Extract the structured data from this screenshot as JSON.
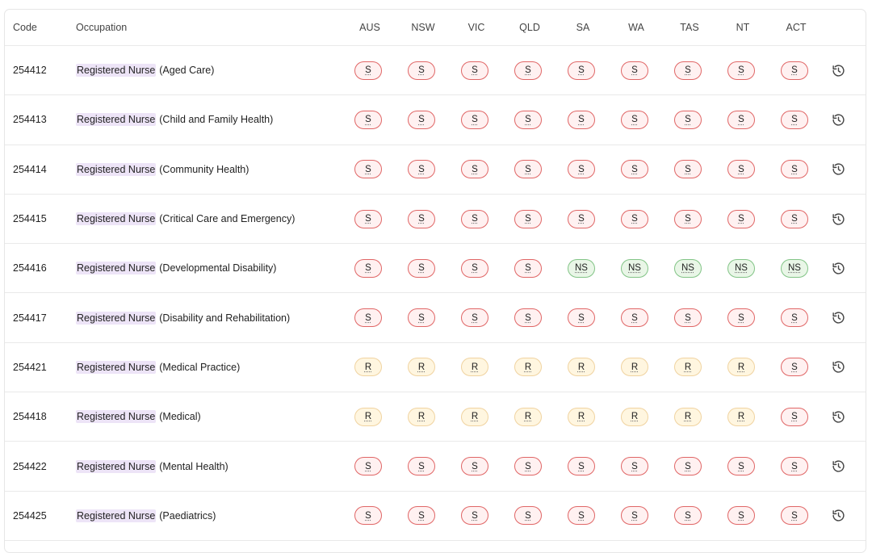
{
  "table": {
    "headers": {
      "code": "Code",
      "occupation": "Occupation",
      "states": [
        "AUS",
        "NSW",
        "VIC",
        "QLD",
        "SA",
        "WA",
        "TAS",
        "NT",
        "ACT"
      ]
    },
    "rows": [
      {
        "code": "254412",
        "name": "Registered Nurse",
        "spec": "(Aged Care)",
        "statuses": [
          "S",
          "S",
          "S",
          "S",
          "S",
          "S",
          "S",
          "S",
          "S"
        ]
      },
      {
        "code": "254413",
        "name": "Registered Nurse",
        "spec": "(Child and Family Health)",
        "statuses": [
          "S",
          "S",
          "S",
          "S",
          "S",
          "S",
          "S",
          "S",
          "S"
        ]
      },
      {
        "code": "254414",
        "name": "Registered Nurse",
        "spec": "(Community Health)",
        "statuses": [
          "S",
          "S",
          "S",
          "S",
          "S",
          "S",
          "S",
          "S",
          "S"
        ]
      },
      {
        "code": "254415",
        "name": "Registered Nurse",
        "spec": "(Critical Care and Emergency)",
        "statuses": [
          "S",
          "S",
          "S",
          "S",
          "S",
          "S",
          "S",
          "S",
          "S"
        ]
      },
      {
        "code": "254416",
        "name": "Registered Nurse",
        "spec": "(Developmental Disability)",
        "statuses": [
          "S",
          "S",
          "S",
          "S",
          "NS",
          "NS",
          "NS",
          "NS",
          "NS"
        ]
      },
      {
        "code": "254417",
        "name": "Registered Nurse",
        "spec": "(Disability and Rehabilitation)",
        "statuses": [
          "S",
          "S",
          "S",
          "S",
          "S",
          "S",
          "S",
          "S",
          "S"
        ]
      },
      {
        "code": "254421",
        "name": "Registered Nurse",
        "spec": "(Medical Practice)",
        "statuses": [
          "R",
          "R",
          "R",
          "R",
          "R",
          "R",
          "R",
          "R",
          "S"
        ]
      },
      {
        "code": "254418",
        "name": "Registered Nurse",
        "spec": "(Medical)",
        "statuses": [
          "R",
          "R",
          "R",
          "R",
          "R",
          "R",
          "R",
          "R",
          "S"
        ]
      },
      {
        "code": "254422",
        "name": "Registered Nurse",
        "spec": "(Mental Health)",
        "statuses": [
          "S",
          "S",
          "S",
          "S",
          "S",
          "S",
          "S",
          "S",
          "S"
        ]
      },
      {
        "code": "254425",
        "name": "Registered Nurse",
        "spec": "(Paediatrics)",
        "statuses": [
          "S",
          "S",
          "S",
          "S",
          "S",
          "S",
          "S",
          "S",
          "S"
        ]
      }
    ],
    "row_action_icon": "history-icon"
  },
  "colors": {
    "S": {
      "fill": "#fff1f1",
      "border": "#e06666"
    },
    "R": {
      "fill": "#fff6e0",
      "border": "#f0d3a0"
    },
    "NS": {
      "fill": "#e9f6e7",
      "border": "#82c486"
    },
    "highlight": "#ede4f7"
  }
}
